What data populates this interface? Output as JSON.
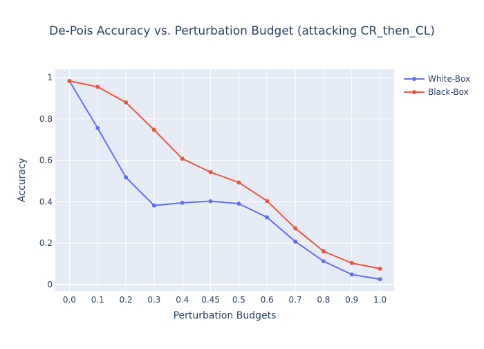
{
  "chart_data": {
    "type": "line",
    "title": "De-Pois Accuracy vs. Perturbation Budget (attacking CR_then_CL)",
    "xlabel": "Perturbation Budgets",
    "ylabel": "Accuracy",
    "categories": [
      "0.0",
      "0.1",
      "0.2",
      "0.3",
      "0.4",
      "0.45",
      "0.5",
      "0.6",
      "0.7",
      "0.8",
      "0.9",
      "1.0"
    ],
    "ylim": [
      -0.03,
      1.04
    ],
    "yticks": [
      0,
      0.2,
      0.4,
      0.6,
      0.8,
      1
    ],
    "ytick_labels": [
      "0",
      "0.2",
      "0.4",
      "0.6",
      "0.8",
      "1"
    ],
    "grid": true,
    "legend_position": "top-right",
    "series": [
      {
        "name": "White-Box",
        "color": "#636efa",
        "values": [
          0.983,
          0.756,
          0.518,
          0.382,
          0.395,
          0.403,
          0.391,
          0.325,
          0.208,
          0.113,
          0.049,
          0.026
        ]
      },
      {
        "name": "Black-Box",
        "color": "#ef553b",
        "values": [
          0.983,
          0.955,
          0.88,
          0.747,
          0.608,
          0.543,
          0.493,
          0.404,
          0.272,
          0.161,
          0.104,
          0.077
        ]
      }
    ]
  }
}
